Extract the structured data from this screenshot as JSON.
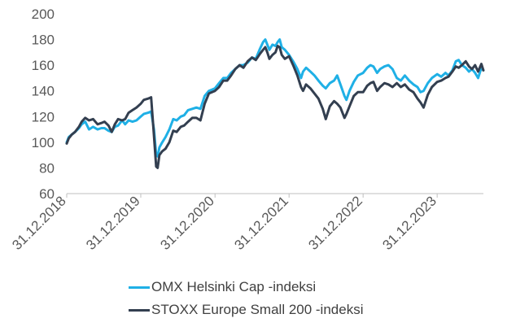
{
  "chart_data": {
    "type": "line",
    "title": "",
    "xlabel": "",
    "ylabel": "",
    "ylim": [
      60,
      200
    ],
    "yticks": [
      60,
      80,
      100,
      120,
      140,
      160,
      180,
      200
    ],
    "xlim": [
      "2018-12-31",
      "2024-08-15"
    ],
    "xticks": [
      "31.12.2018",
      "31.12.2019",
      "31.12.2020",
      "31.12.2021",
      "31.12.2022",
      "31.12.2023"
    ],
    "grid": false,
    "legend_position": "bottom",
    "series": [
      {
        "name": "OMX Helsinki Cap -indeksi",
        "color": "#1fb0e6",
        "points": [
          [
            "2018-12-31",
            100
          ],
          [
            "2019-01-10",
            104
          ],
          [
            "2019-01-25",
            106
          ],
          [
            "2019-02-10",
            108
          ],
          [
            "2019-03-01",
            111
          ],
          [
            "2019-03-15",
            114
          ],
          [
            "2019-04-01",
            116
          ],
          [
            "2019-04-20",
            110
          ],
          [
            "2019-05-10",
            112
          ],
          [
            "2019-06-01",
            110
          ],
          [
            "2019-06-20",
            111
          ],
          [
            "2019-07-05",
            111
          ],
          [
            "2019-07-25",
            109
          ],
          [
            "2019-08-10",
            108
          ],
          [
            "2019-08-25",
            112
          ],
          [
            "2019-09-10",
            113
          ],
          [
            "2019-09-30",
            117
          ],
          [
            "2019-10-15",
            114
          ],
          [
            "2019-11-01",
            117
          ],
          [
            "2019-11-20",
            116
          ],
          [
            "2019-12-10",
            117
          ],
          [
            "2019-12-31",
            120
          ],
          [
            "2020-01-15",
            122
          ],
          [
            "2020-02-05",
            123
          ],
          [
            "2020-02-20",
            124
          ],
          [
            "2020-03-05",
            110
          ],
          [
            "2020-03-16",
            90
          ],
          [
            "2020-03-23",
            89
          ],
          [
            "2020-04-01",
            96
          ],
          [
            "2020-04-15",
            100
          ],
          [
            "2020-05-01",
            104
          ],
          [
            "2020-05-20",
            110
          ],
          [
            "2020-06-08",
            118
          ],
          [
            "2020-06-25",
            117
          ],
          [
            "2020-07-15",
            120
          ],
          [
            "2020-08-01",
            121
          ],
          [
            "2020-08-20",
            125
          ],
          [
            "2020-09-10",
            126
          ],
          [
            "2020-09-30",
            127
          ],
          [
            "2020-10-20",
            126
          ],
          [
            "2020-11-10",
            136
          ],
          [
            "2020-12-01",
            140
          ],
          [
            "2020-12-31",
            142
          ],
          [
            "2021-01-20",
            146
          ],
          [
            "2021-02-10",
            150
          ],
          [
            "2021-03-01",
            150
          ],
          [
            "2021-03-20",
            154
          ],
          [
            "2021-04-10",
            157
          ],
          [
            "2021-05-01",
            160
          ],
          [
            "2021-05-20",
            160
          ],
          [
            "2021-06-10",
            162
          ],
          [
            "2021-07-01",
            166
          ],
          [
            "2021-07-20",
            165
          ],
          [
            "2021-08-10",
            173
          ],
          [
            "2021-08-25",
            178
          ],
          [
            "2021-09-05",
            180
          ],
          [
            "2021-09-15",
            176
          ],
          [
            "2021-09-25",
            172
          ],
          [
            "2021-10-10",
            176
          ],
          [
            "2021-10-25",
            175
          ],
          [
            "2021-11-05",
            178
          ],
          [
            "2021-11-15",
            180
          ],
          [
            "2021-11-25",
            174
          ],
          [
            "2021-12-10",
            172
          ],
          [
            "2021-12-31",
            168
          ],
          [
            "2022-01-20",
            163
          ],
          [
            "2022-02-10",
            157
          ],
          [
            "2022-02-28",
            150
          ],
          [
            "2022-03-10",
            155
          ],
          [
            "2022-03-25",
            158
          ],
          [
            "2022-04-15",
            155
          ],
          [
            "2022-05-05",
            152
          ],
          [
            "2022-05-25",
            148
          ],
          [
            "2022-06-15",
            144
          ],
          [
            "2022-06-30",
            142
          ],
          [
            "2022-07-20",
            146
          ],
          [
            "2022-08-10",
            148
          ],
          [
            "2022-08-25",
            152
          ],
          [
            "2022-09-10",
            145
          ],
          [
            "2022-09-30",
            136
          ],
          [
            "2022-10-10",
            133
          ],
          [
            "2022-10-25",
            140
          ],
          [
            "2022-11-15",
            147
          ],
          [
            "2022-12-05",
            152
          ],
          [
            "2022-12-31",
            154
          ],
          [
            "2023-01-20",
            158
          ],
          [
            "2023-02-05",
            160
          ],
          [
            "2023-02-20",
            159
          ],
          [
            "2023-03-10",
            154
          ],
          [
            "2023-03-25",
            157
          ],
          [
            "2023-04-15",
            159
          ],
          [
            "2023-05-05",
            160
          ],
          [
            "2023-05-25",
            157
          ],
          [
            "2023-06-15",
            150
          ],
          [
            "2023-07-05",
            148
          ],
          [
            "2023-07-25",
            152
          ],
          [
            "2023-08-15",
            148
          ],
          [
            "2023-09-05",
            145
          ],
          [
            "2023-09-25",
            143
          ],
          [
            "2023-10-10",
            139
          ],
          [
            "2023-10-25",
            140
          ],
          [
            "2023-11-15",
            146
          ],
          [
            "2023-12-05",
            150
          ],
          [
            "2023-12-31",
            153
          ],
          [
            "2024-01-20",
            151
          ],
          [
            "2024-02-10",
            154
          ],
          [
            "2024-02-25",
            152
          ],
          [
            "2024-03-15",
            156
          ],
          [
            "2024-04-01",
            163
          ],
          [
            "2024-04-15",
            164
          ],
          [
            "2024-05-01",
            160
          ],
          [
            "2024-05-20",
            158
          ],
          [
            "2024-06-05",
            155
          ],
          [
            "2024-06-20",
            157
          ],
          [
            "2024-07-05",
            154
          ],
          [
            "2024-07-20",
            150
          ],
          [
            "2024-08-05",
            158
          ],
          [
            "2024-08-15",
            156
          ]
        ]
      },
      {
        "name": "STOXX Europe Small 200 -indeksi",
        "color": "#333f50",
        "points": [
          [
            "2018-12-31",
            99
          ],
          [
            "2019-01-10",
            103
          ],
          [
            "2019-01-25",
            106
          ],
          [
            "2019-02-10",
            108
          ],
          [
            "2019-03-01",
            112
          ],
          [
            "2019-03-15",
            116
          ],
          [
            "2019-04-01",
            119
          ],
          [
            "2019-04-20",
            117
          ],
          [
            "2019-05-10",
            118
          ],
          [
            "2019-06-01",
            114
          ],
          [
            "2019-06-20",
            115
          ],
          [
            "2019-07-05",
            116
          ],
          [
            "2019-07-25",
            113
          ],
          [
            "2019-08-10",
            108
          ],
          [
            "2019-08-25",
            114
          ],
          [
            "2019-09-10",
            118
          ],
          [
            "2019-09-30",
            117
          ],
          [
            "2019-10-15",
            118
          ],
          [
            "2019-11-01",
            123
          ],
          [
            "2019-11-20",
            125
          ],
          [
            "2019-12-10",
            127
          ],
          [
            "2019-12-31",
            130
          ],
          [
            "2020-01-15",
            133
          ],
          [
            "2020-02-05",
            134
          ],
          [
            "2020-02-20",
            135
          ],
          [
            "2020-03-05",
            105
          ],
          [
            "2020-03-16",
            81
          ],
          [
            "2020-03-23",
            80
          ],
          [
            "2020-04-01",
            90
          ],
          [
            "2020-04-15",
            93
          ],
          [
            "2020-05-01",
            95
          ],
          [
            "2020-05-20",
            100
          ],
          [
            "2020-06-08",
            109
          ],
          [
            "2020-06-25",
            108
          ],
          [
            "2020-07-15",
            112
          ],
          [
            "2020-08-01",
            113
          ],
          [
            "2020-08-20",
            116
          ],
          [
            "2020-09-10",
            119
          ],
          [
            "2020-09-30",
            119
          ],
          [
            "2020-10-20",
            117
          ],
          [
            "2020-11-10",
            130
          ],
          [
            "2020-12-01",
            138
          ],
          [
            "2020-12-31",
            140
          ],
          [
            "2021-01-20",
            143
          ],
          [
            "2021-02-10",
            148
          ],
          [
            "2021-03-01",
            148
          ],
          [
            "2021-03-20",
            152
          ],
          [
            "2021-04-10",
            157
          ],
          [
            "2021-05-01",
            160
          ],
          [
            "2021-05-20",
            158
          ],
          [
            "2021-06-10",
            163
          ],
          [
            "2021-07-01",
            166
          ],
          [
            "2021-07-20",
            164
          ],
          [
            "2021-08-10",
            169
          ],
          [
            "2021-08-25",
            172
          ],
          [
            "2021-09-05",
            174
          ],
          [
            "2021-09-15",
            170
          ],
          [
            "2021-09-25",
            165
          ],
          [
            "2021-10-10",
            168
          ],
          [
            "2021-10-25",
            170
          ],
          [
            "2021-11-05",
            175
          ],
          [
            "2021-11-15",
            174
          ],
          [
            "2021-11-25",
            168
          ],
          [
            "2021-12-10",
            165
          ],
          [
            "2021-12-31",
            167
          ],
          [
            "2022-01-20",
            160
          ],
          [
            "2022-02-10",
            152
          ],
          [
            "2022-02-28",
            143
          ],
          [
            "2022-03-10",
            140
          ],
          [
            "2022-03-25",
            145
          ],
          [
            "2022-04-15",
            142
          ],
          [
            "2022-05-05",
            138
          ],
          [
            "2022-05-25",
            134
          ],
          [
            "2022-06-15",
            126
          ],
          [
            "2022-06-30",
            118
          ],
          [
            "2022-07-20",
            128
          ],
          [
            "2022-08-10",
            132
          ],
          [
            "2022-08-25",
            130
          ],
          [
            "2022-09-10",
            127
          ],
          [
            "2022-09-30",
            119
          ],
          [
            "2022-10-10",
            122
          ],
          [
            "2022-10-25",
            128
          ],
          [
            "2022-11-15",
            136
          ],
          [
            "2022-12-05",
            139
          ],
          [
            "2022-12-31",
            139
          ],
          [
            "2023-01-20",
            144
          ],
          [
            "2023-02-05",
            146
          ],
          [
            "2023-02-20",
            147
          ],
          [
            "2023-03-10",
            140
          ],
          [
            "2023-03-25",
            143
          ],
          [
            "2023-04-15",
            146
          ],
          [
            "2023-05-05",
            145
          ],
          [
            "2023-05-25",
            143
          ],
          [
            "2023-06-15",
            146
          ],
          [
            "2023-07-05",
            143
          ],
          [
            "2023-07-25",
            145
          ],
          [
            "2023-08-15",
            141
          ],
          [
            "2023-09-05",
            139
          ],
          [
            "2023-09-25",
            134
          ],
          [
            "2023-10-10",
            131
          ],
          [
            "2023-10-25",
            127
          ],
          [
            "2023-11-15",
            137
          ],
          [
            "2023-12-05",
            143
          ],
          [
            "2023-12-31",
            147
          ],
          [
            "2024-01-20",
            148
          ],
          [
            "2024-02-10",
            150
          ],
          [
            "2024-02-25",
            151
          ],
          [
            "2024-03-15",
            155
          ],
          [
            "2024-04-01",
            159
          ],
          [
            "2024-04-15",
            158
          ],
          [
            "2024-05-01",
            160
          ],
          [
            "2024-05-20",
            163
          ],
          [
            "2024-06-05",
            159
          ],
          [
            "2024-06-20",
            157
          ],
          [
            "2024-07-05",
            160
          ],
          [
            "2024-07-20",
            155
          ],
          [
            "2024-08-05",
            161
          ],
          [
            "2024-08-15",
            156
          ]
        ]
      }
    ]
  }
}
